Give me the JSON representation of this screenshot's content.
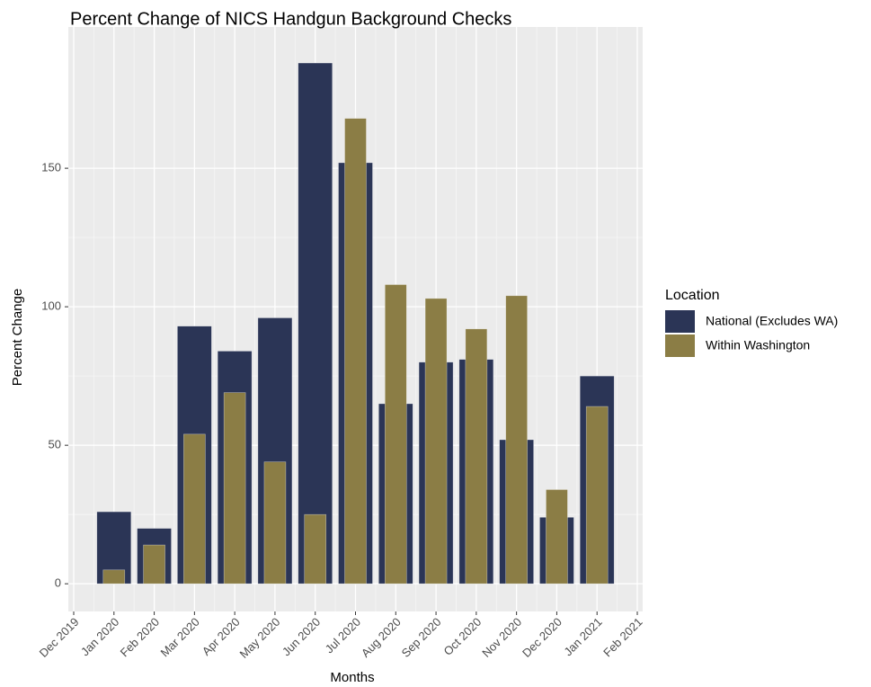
{
  "chart_data": {
    "type": "bar",
    "title": "Percent Change of NICS Handgun Background Checks",
    "x_label": "Months",
    "y_label": "Percent Change",
    "legend_title": "Location",
    "x": [
      "Jan 2020",
      "Feb 2020",
      "Mar 2020",
      "Apr 2020",
      "May 2020",
      "Jun 2020",
      "Jul 2020",
      "Aug 2020",
      "Sep 2020",
      "Oct 2020",
      "Nov 2020",
      "Dec 2020",
      "Jan 2021"
    ],
    "series": [
      {
        "name": "National (Excludes WA)",
        "color": "#2b3556",
        "values": [
          26,
          20,
          93,
          84,
          96,
          188,
          152,
          65,
          80,
          81,
          52,
          24,
          75
        ]
      },
      {
        "name": "Within Washington",
        "color": "#8b7d45",
        "values": [
          5,
          14,
          54,
          69,
          44,
          25,
          168,
          108,
          103,
          92,
          104,
          34,
          64
        ]
      }
    ],
    "xticks": [
      "Dec 2019",
      "Jan 2020",
      "Feb 2020",
      "Mar 2020",
      "Apr 2020",
      "May 2020",
      "Jun 2020",
      "Jul 2020",
      "Aug 2020",
      "Sep 2020",
      "Oct 2020",
      "Nov 2020",
      "Dec 2020",
      "Jan 2021",
      "Feb 2021"
    ],
    "ylim": [
      -10,
      201
    ],
    "yticks": [
      0,
      50,
      100,
      150
    ],
    "grid": true,
    "legend": "right"
  }
}
